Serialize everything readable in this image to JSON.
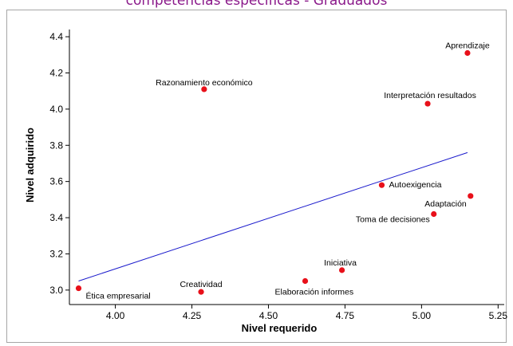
{
  "chart_data": {
    "type": "scatter",
    "title": "competencias específicas - Graduados",
    "xlabel": "Nivel requerido",
    "ylabel": "Nivel adquirido",
    "xlim": [
      3.85,
      5.27
    ],
    "ylim": [
      2.92,
      4.44
    ],
    "x_ticks": [
      "4.00",
      "4.25",
      "4.50",
      "4.75",
      "5.00",
      "5.25"
    ],
    "y_ticks": [
      "3.0",
      "3.2",
      "3.4",
      "3.6",
      "3.8",
      "4.0",
      "4.2",
      "4.4"
    ],
    "grid": false,
    "point_color": "#e8101a",
    "line_color": "#1a1acc",
    "points": [
      {
        "label": "Aprendizaje",
        "x": 5.15,
        "y": 4.31
      },
      {
        "label": "Razonamiento económico",
        "x": 4.29,
        "y": 4.11
      },
      {
        "label": "Interpretación resultados",
        "x": 5.02,
        "y": 4.03
      },
      {
        "label": "Autoexigencia",
        "x": 4.87,
        "y": 3.58
      },
      {
        "label": "Adaptación",
        "x": 5.16,
        "y": 3.52
      },
      {
        "label": "Toma de decisiones",
        "x": 5.04,
        "y": 3.42
      },
      {
        "label": "Iniciativa",
        "x": 4.74,
        "y": 3.11
      },
      {
        "label": "Elaboración informes",
        "x": 4.62,
        "y": 3.05
      },
      {
        "label": "Creatividad",
        "x": 4.28,
        "y": 2.99
      },
      {
        "label": "Ética empresarial",
        "x": 3.88,
        "y": 3.01
      }
    ],
    "regression_line": {
      "x": [
        3.88,
        5.15
      ],
      "y": [
        3.05,
        3.76
      ]
    }
  }
}
